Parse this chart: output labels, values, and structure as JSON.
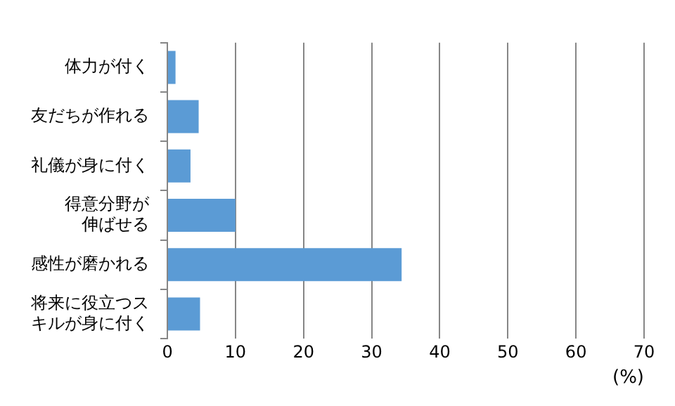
{
  "chart_data": {
    "type": "bar",
    "orientation": "horizontal",
    "categories": [
      "体力が付く",
      "友だちが作れる",
      "礼儀が身に付く",
      "得意分野が伸ばせる",
      "感性が磨かれる",
      "将来に役立つスキルが身に付く"
    ],
    "values": [
      1.2,
      4.6,
      3.4,
      10,
      34.4,
      4.8
    ],
    "color": "#5b9bd5",
    "xlim": [
      0,
      70
    ],
    "xticks": [
      0,
      10,
      20,
      30,
      40,
      50,
      60,
      70
    ],
    "xlabel": "(%)",
    "grid": "x",
    "legend": false
  }
}
